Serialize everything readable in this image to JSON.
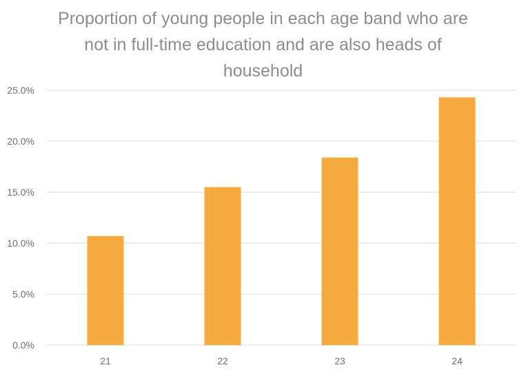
{
  "chart_data": {
    "type": "bar",
    "title_lines": [
      "Proportion of young people in each age band who are",
      "not in full-time education and are also heads of",
      "household"
    ],
    "categories": [
      "21",
      "22",
      "23",
      "24"
    ],
    "values": [
      0.107,
      0.155,
      0.184,
      0.243
    ],
    "ylim": [
      0,
      0.25
    ],
    "y_ticks": [
      "0.0%",
      "5.0%",
      "10.0%",
      "15.0%",
      "20.0%",
      "25.0%"
    ],
    "y_tick_values": [
      0,
      0.05,
      0.1,
      0.15,
      0.2,
      0.25
    ],
    "grid": true,
    "legend": "none",
    "bar_color": "#f6ab41",
    "grid_color": "#d9d9d9",
    "text_color": "#8c8c8c"
  }
}
